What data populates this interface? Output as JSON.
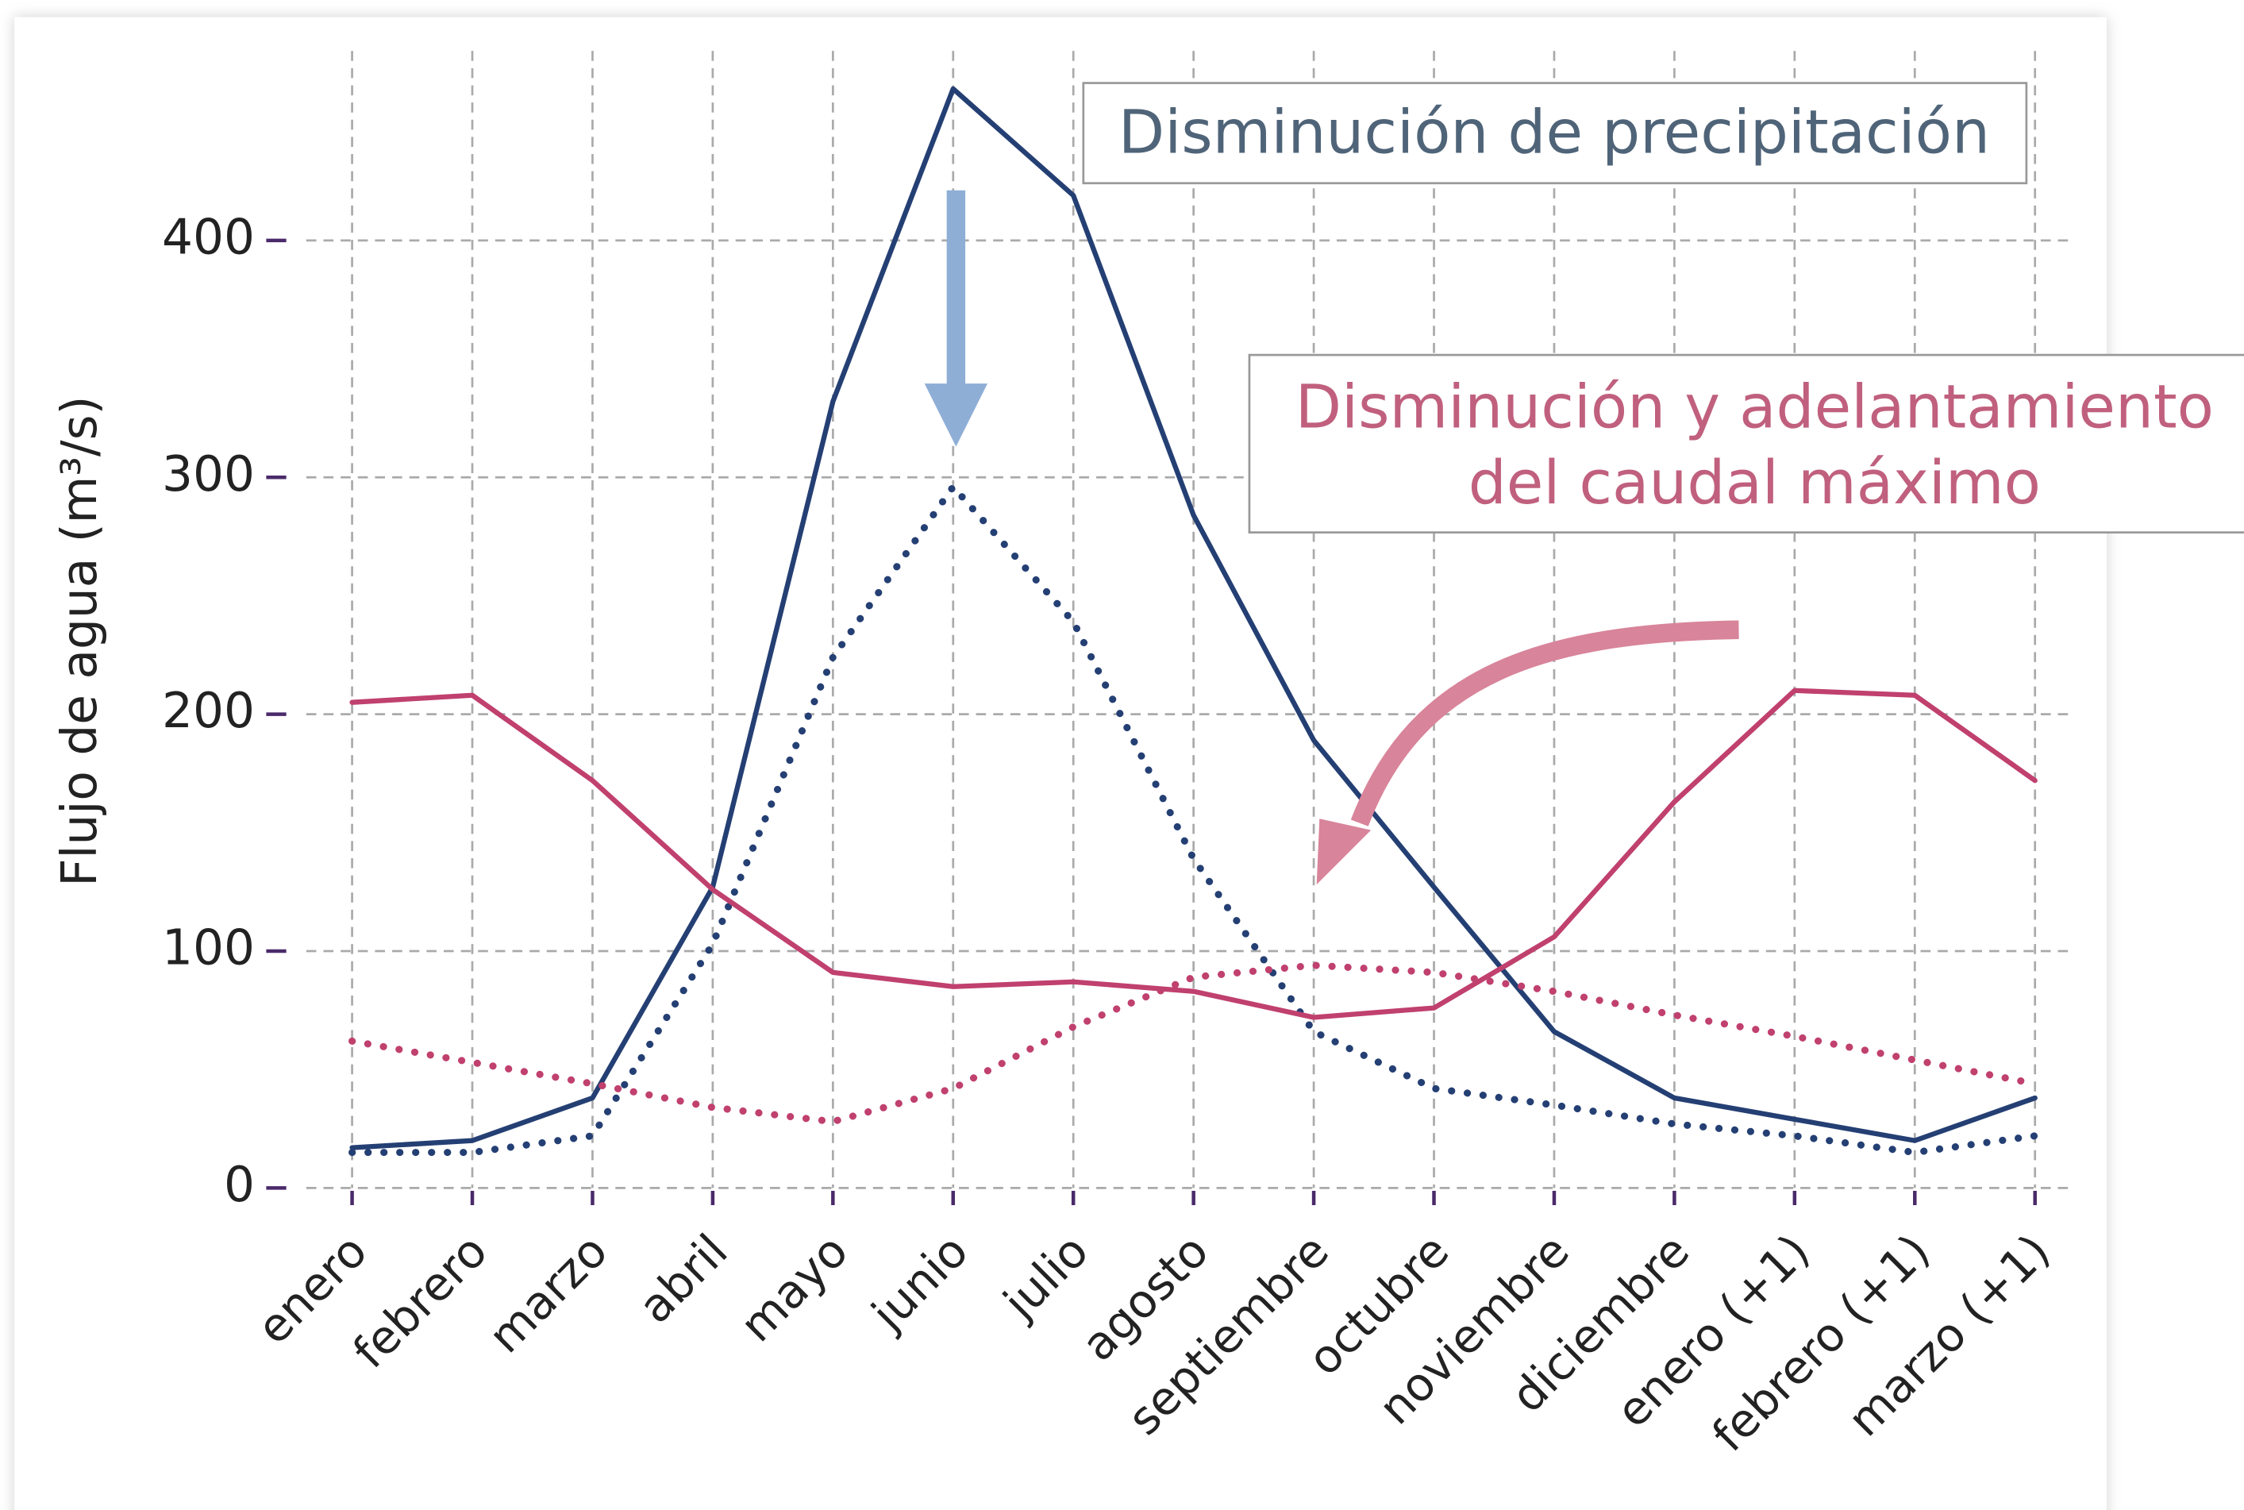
{
  "chart_data": {
    "type": "line",
    "ylabel": "Flujo de agua (m³/s)",
    "categories": [
      "enero",
      "febrero",
      "marzo",
      "abril",
      "mayo",
      "junio",
      "julio",
      "agosto",
      "septiembre",
      "octubre",
      "noviembre",
      "diciembre",
      "enero (+1)",
      "febrero (+1)",
      "marzo (+1)"
    ],
    "series": [
      {
        "color": "#243f73",
        "linestyle": "solid",
        "values": [
          17,
          20,
          38,
          127,
          332,
          464,
          419,
          284,
          189,
          127,
          66,
          38,
          29,
          20,
          38
        ]
      },
      {
        "color": "#243f73",
        "linestyle": "dotted",
        "values": [
          15,
          15,
          22,
          103,
          224,
          296,
          239,
          139,
          66,
          42,
          35,
          27,
          22,
          15,
          22
        ]
      },
      {
        "color": "#c0406e",
        "linestyle": "solid",
        "values": [
          205,
          208,
          172,
          126,
          91,
          85,
          87,
          83,
          72,
          76,
          106,
          163,
          210,
          208,
          172
        ]
      },
      {
        "color": "#c0406e",
        "linestyle": "dotted",
        "values": [
          62,
          53,
          44,
          34,
          28,
          42,
          68,
          89,
          94,
          91,
          83,
          73,
          64,
          54,
          44
        ]
      }
    ],
    "ylim": [
      0,
      480
    ],
    "yticks": [
      0,
      100,
      200,
      300,
      400
    ],
    "grid": true,
    "annotations": [
      {
        "lines": [
          "Disminución de precipitación"
        ],
        "color": "#4f6478"
      },
      {
        "lines": [
          "Disminución y adelantamiento",
          "del caudal máximo"
        ],
        "color": "#c0607e"
      }
    ]
  }
}
